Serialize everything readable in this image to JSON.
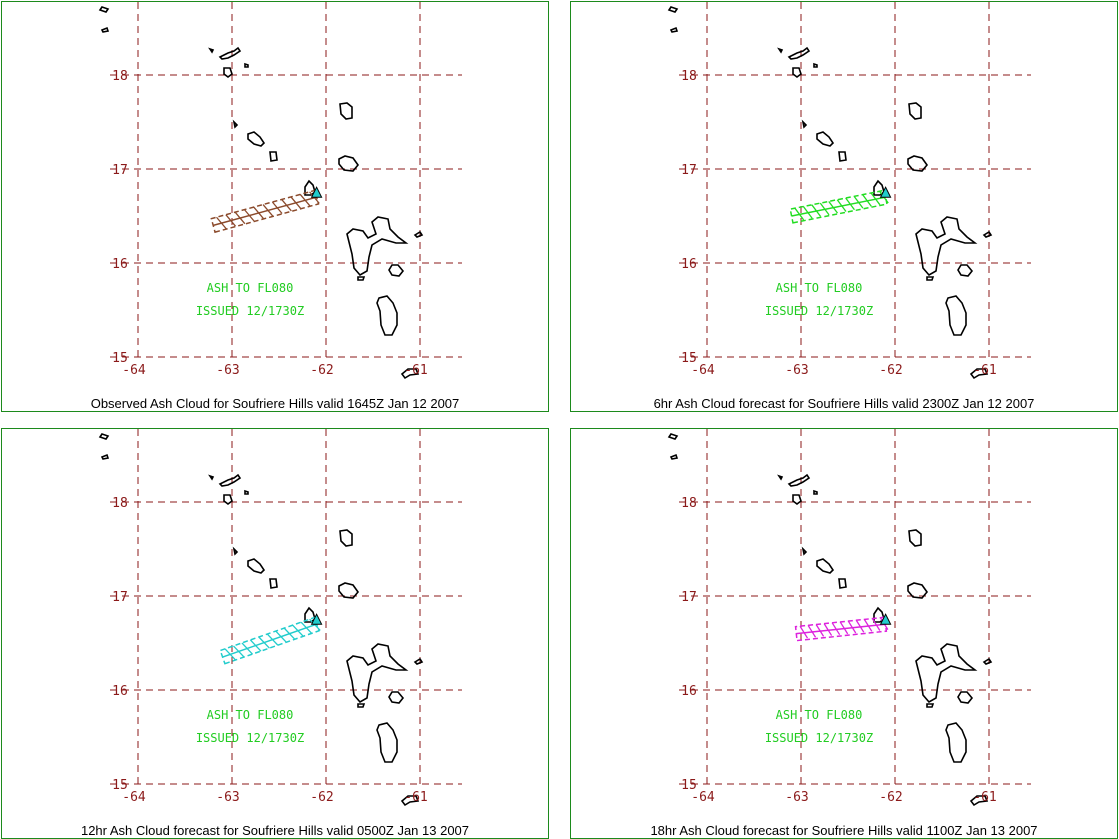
{
  "panels": [
    {
      "caption": "Observed Ash Cloud for Soufriere  Hills valid 1645Z Jan 12 2007",
      "ash_color": "#8b4a2b",
      "plume": [
        [
          -63.2,
          16.4
        ],
        [
          -62.1,
          16.7
        ]
      ],
      "notes": [
        "ASH TO FL080",
        "ISSUED 12/1730Z"
      ]
    },
    {
      "caption": "6hr Ash Cloud forecast for Soufriere  Hills valid 2300Z Jan 12 2007",
      "ash_color": "#22dd22",
      "plume": [
        [
          -63.1,
          16.5
        ],
        [
          -62.1,
          16.7
        ]
      ],
      "notes": [
        "ASH TO FL080",
        "ISSUED 12/1730Z"
      ]
    },
    {
      "caption": "12hr Ash Cloud forecast for Soufriere  Hills valid 0500Z Jan 13 2007",
      "ash_color": "#22cccc",
      "plume": [
        [
          -63.1,
          16.35
        ],
        [
          -62.1,
          16.7
        ]
      ],
      "notes": [
        "ASH TO FL080",
        "ISSUED 12/1730Z"
      ]
    },
    {
      "caption": "18hr Ash Cloud forecast for Soufriere  Hills valid 1100Z Jan 13 2007",
      "ash_color": "#dd22dd",
      "plume": [
        [
          -63.05,
          16.6
        ],
        [
          -62.1,
          16.7
        ]
      ],
      "notes": [
        "ASH TO FL080",
        "ISSUED 12/1730Z"
      ]
    }
  ],
  "grid": {
    "lon_labels": [
      "-64",
      "-63",
      "-62",
      "-61"
    ],
    "lat_labels": [
      "18",
      "17",
      "16",
      "15"
    ],
    "lons": [
      -64,
      -63,
      -62,
      -61
    ],
    "lats": [
      18,
      17,
      16,
      15
    ]
  },
  "colors": {
    "grid": "#8b1a1a",
    "label": "#8b1a1a",
    "border": "#1c8a1c",
    "note_text": "#22cc22",
    "coast": "#000000",
    "volcano": "#22cccc"
  }
}
